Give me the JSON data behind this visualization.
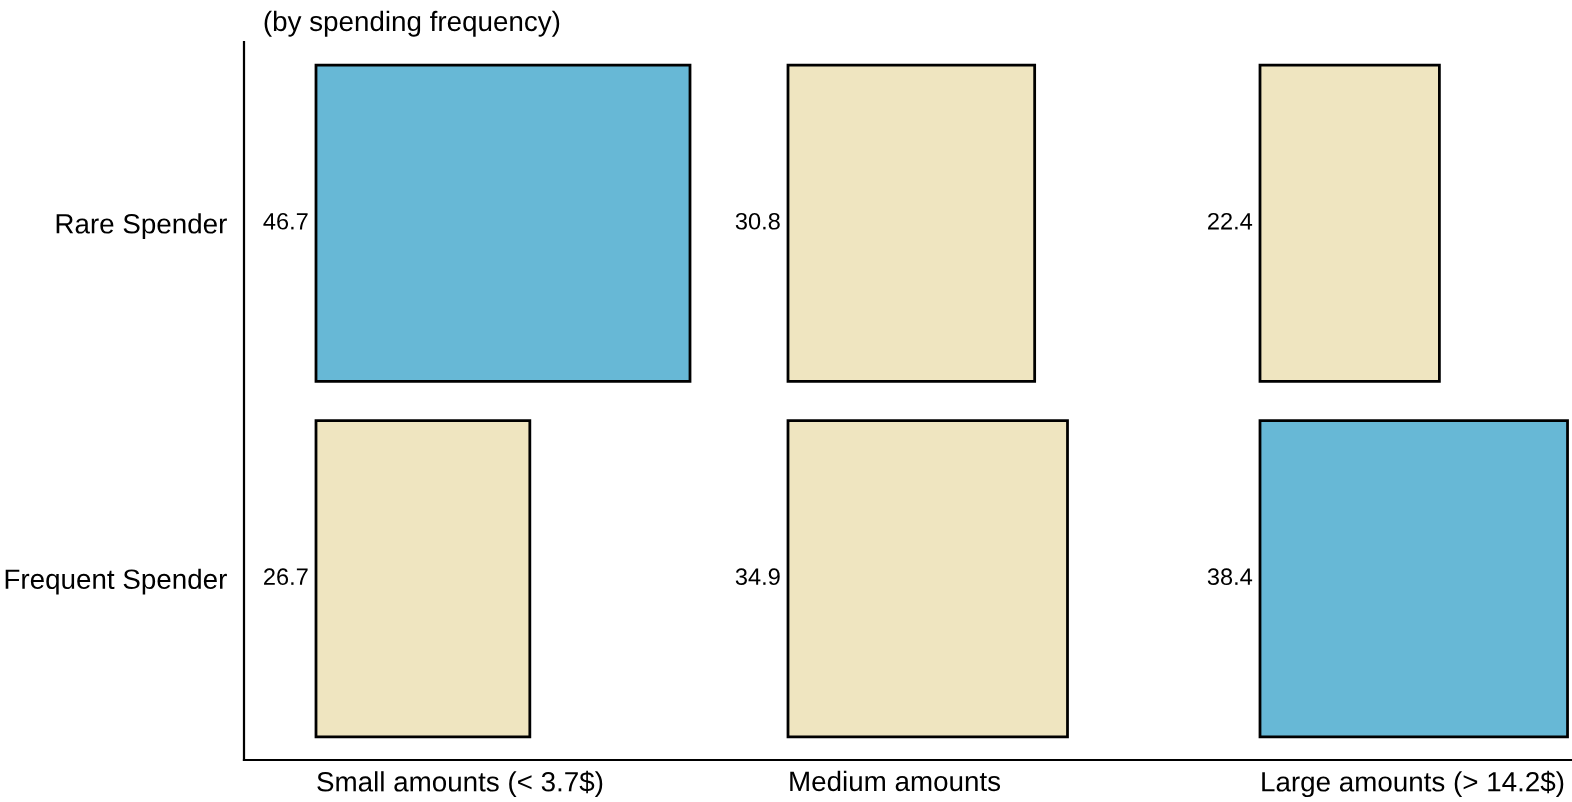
{
  "chart_data": [
    {
      "type": "bar",
      "orientation": "horizontal",
      "title": "(by spending frequency)",
      "xlabel": "Small amounts (< 3.7$)",
      "categories": [
        "Rare Spender",
        "Frequent Spender"
      ],
      "values": [
        46.7,
        26.7
      ],
      "colors": [
        "#67b8d6",
        "#efe5c0"
      ],
      "data_labels": true,
      "tick_labels": "y"
    },
    {
      "type": "bar",
      "orientation": "horizontal",
      "xlabel": "Medium amounts",
      "values": [
        30.8,
        34.9
      ],
      "colors": [
        "#efe5c0",
        "#efe5c0"
      ],
      "data_labels": true,
      "tick_labels": false
    },
    {
      "type": "bar",
      "orientation": "horizontal",
      "xlabel": "Large amounts (> 14.2$)",
      "values": [
        22.4,
        38.4
      ],
      "colors": [
        "#efe5c0",
        "#67b8d6"
      ],
      "data_labels": true,
      "tick_labels": false
    }
  ]
}
